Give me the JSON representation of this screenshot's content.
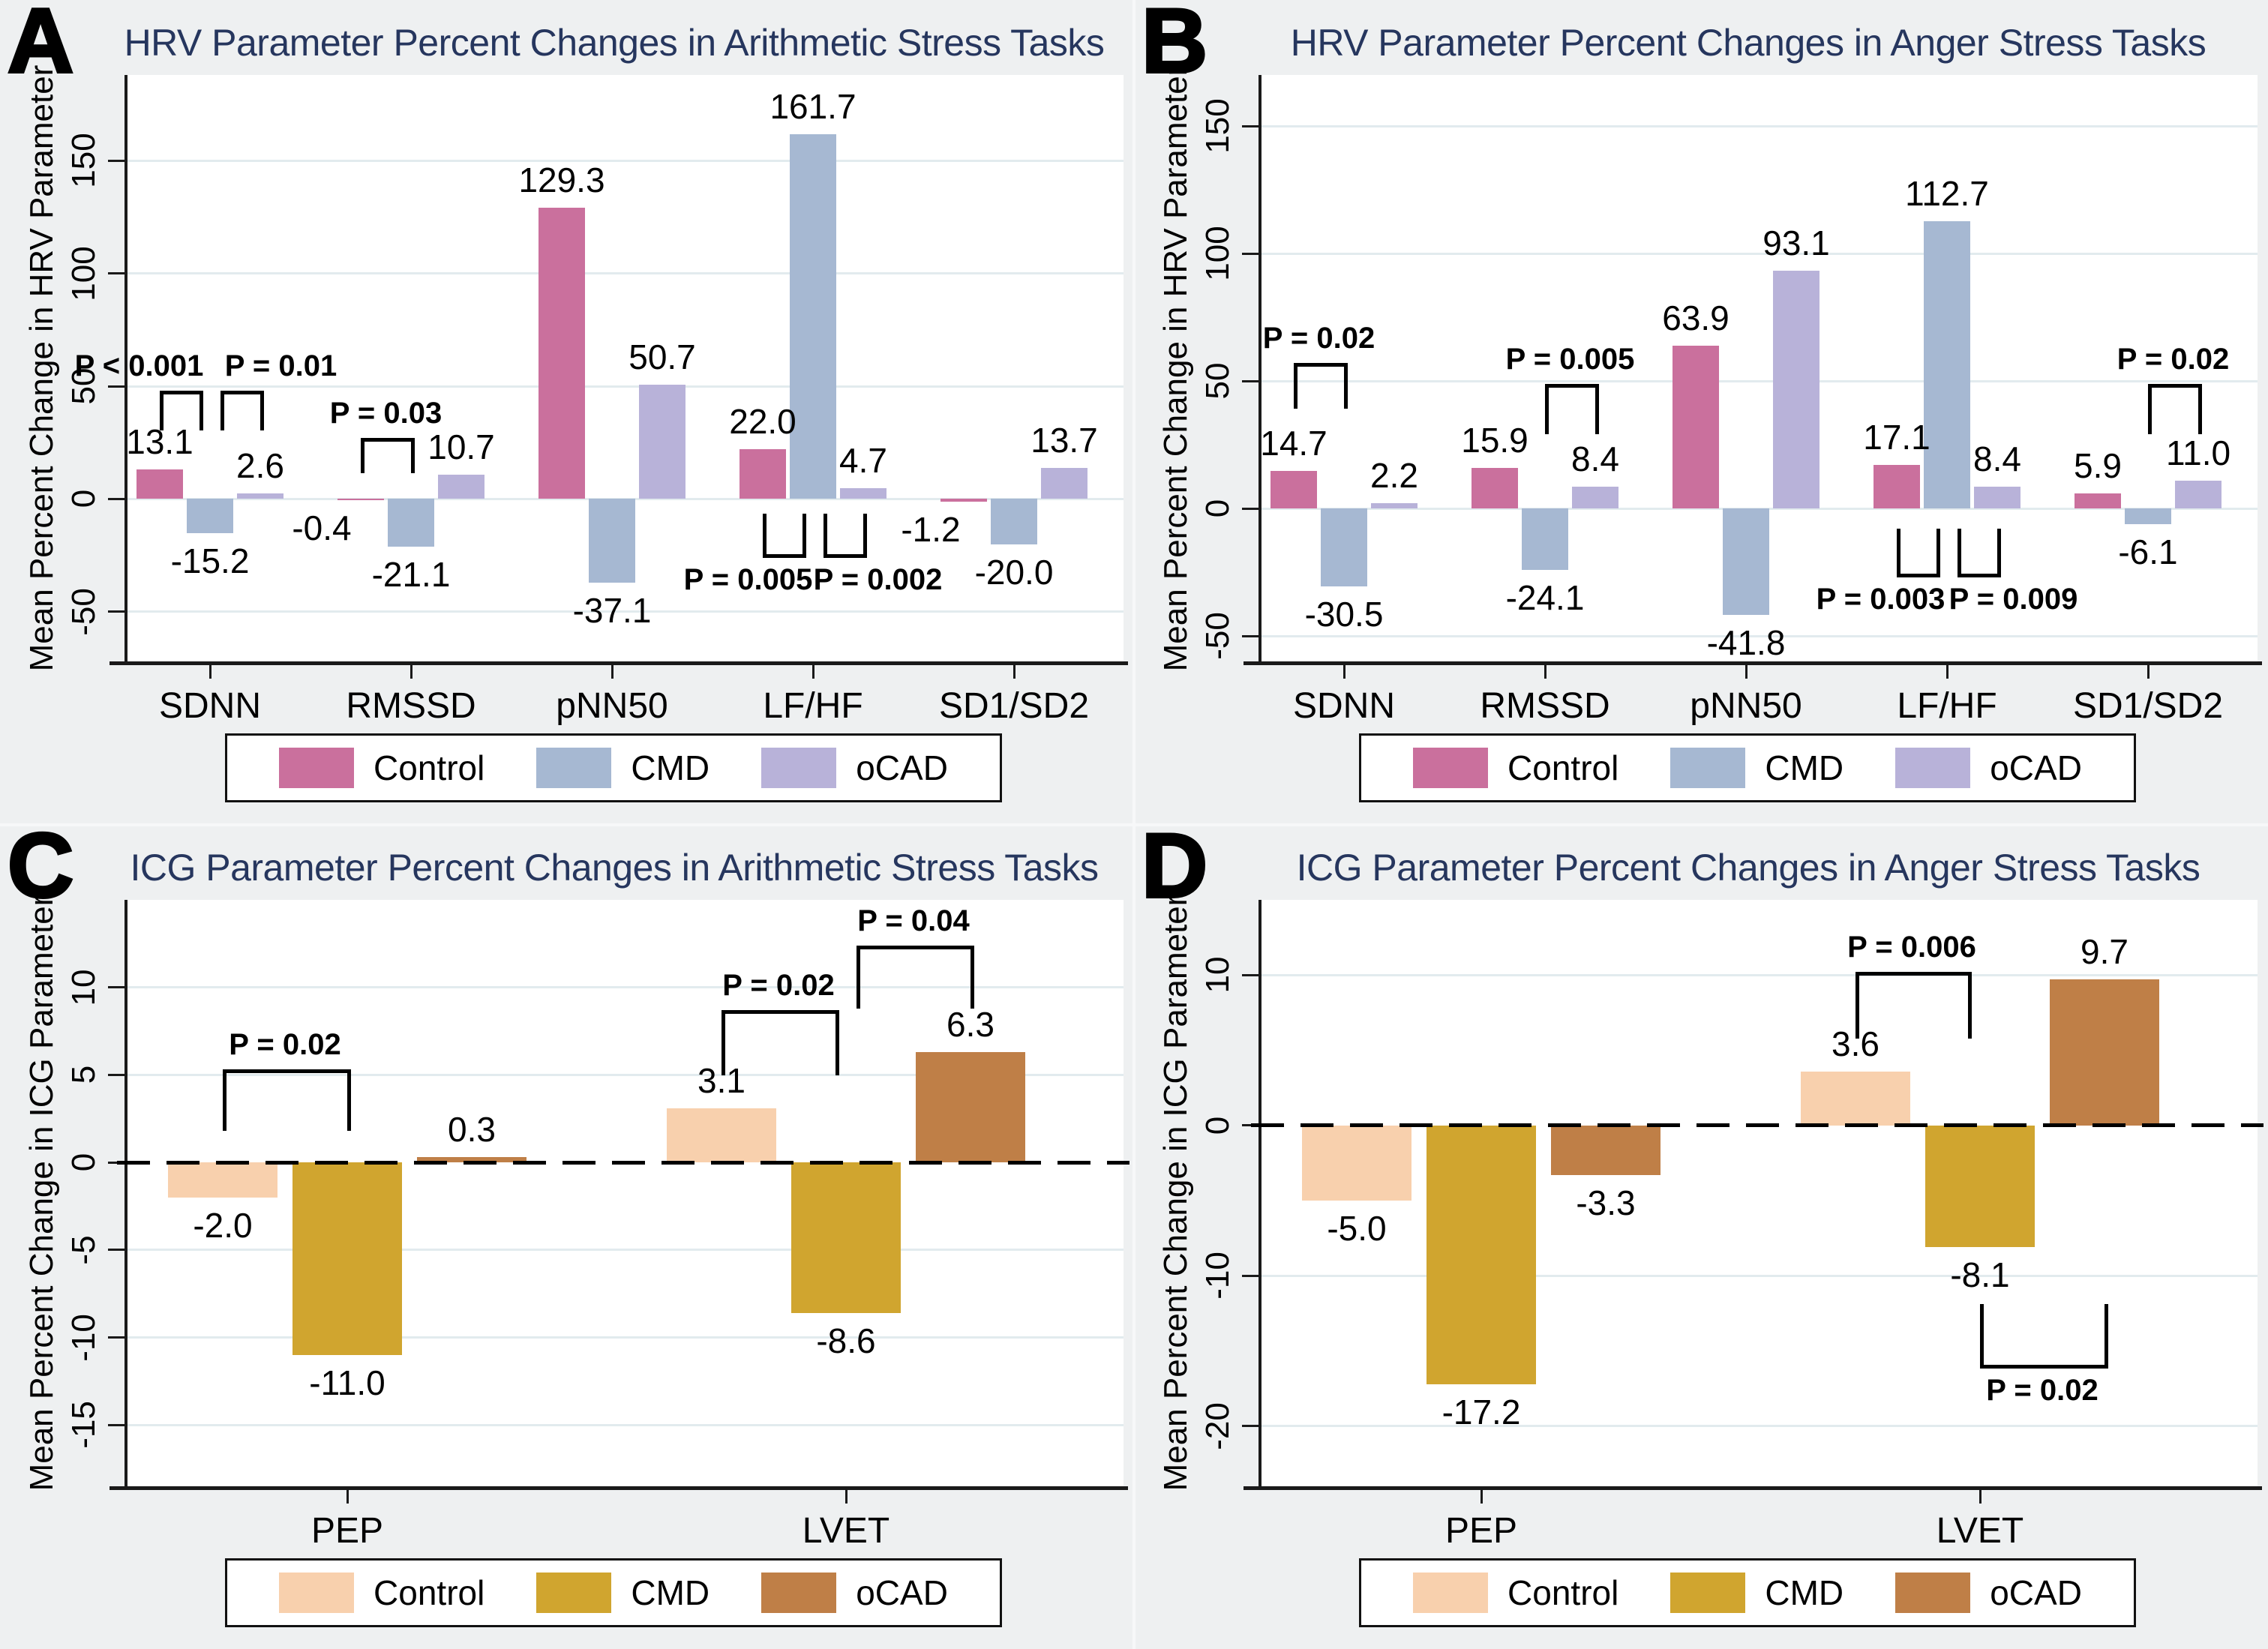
{
  "figure": {
    "background": "#eef0f1",
    "title_color": "#26365e",
    "axis_color": "#1a1a1a",
    "grid_color": "#e2ebee",
    "bracket_color": "#000000"
  },
  "chart_data": [
    {
      "id": "A",
      "type": "bar",
      "title": "HRV Parameter Percent Changes in Arithmetic Stress Tasks",
      "ylabel": "Mean Percent Change in HRV Parameter",
      "categories": [
        "SDNN",
        "RMSSD",
        "pNN50",
        "LF/HF",
        "SD1/SD2"
      ],
      "yticks": [
        150,
        100,
        50,
        0,
        -50
      ],
      "ylim": [
        -72,
        188
      ],
      "zero_line": "grid",
      "legend_position": "bottom",
      "series": [
        {
          "name": "Control",
          "color": "#ca709d",
          "values": [
            13.1,
            -0.4,
            129.3,
            22.0,
            -1.2
          ],
          "labels": [
            "13.1",
            "-0.4",
            "129.3",
            "22.0",
            "-1.2"
          ],
          "label_dx": [
            0,
            -52,
            0,
            0,
            -44
          ]
        },
        {
          "name": "CMD",
          "color": "#a6b8d2",
          "values": [
            -15.2,
            -21.1,
            -37.1,
            161.7,
            -20.0
          ],
          "labels": [
            "-15.2",
            "-21.1",
            "-37.1",
            "161.7",
            "-20.0"
          ]
        },
        {
          "name": "oCAD",
          "color": "#b8b2d9",
          "values": [
            2.6,
            10.7,
            50.7,
            4.7,
            13.7
          ],
          "labels": [
            "2.6",
            "10.7",
            "50.7",
            "4.7",
            "13.7"
          ]
        }
      ],
      "p_brackets": [
        {
          "group": 0,
          "s1": 0,
          "s2": 1,
          "label": "P < 0.001",
          "side": "above",
          "bar_y": 48,
          "leg_y": 32,
          "label_dx": -54,
          "pad2": -14
        },
        {
          "group": 0,
          "s1": 1,
          "s2": 2,
          "label": "P = 0.01",
          "side": "above",
          "bar_y": 48,
          "leg_y": 32,
          "label_dx": 54,
          "pad1": 14
        },
        {
          "group": 1,
          "s1": 0,
          "s2": 1,
          "label": "P = 0.03",
          "side": "above",
          "bar_y": 27,
          "leg_y": 13
        },
        {
          "group": 3,
          "s1": 0,
          "s2": 1,
          "label": "P = 0.005",
          "side": "below",
          "bar_y": -24.5,
          "leg_y": -6.6,
          "label_dx": -46,
          "pad2": -14
        },
        {
          "group": 3,
          "s1": 1,
          "s2": 2,
          "label": "P = 0.002",
          "side": "below",
          "bar_y": -24.5,
          "leg_y": -6.6,
          "label_dx": 46,
          "pad1": 14
        }
      ]
    },
    {
      "id": "B",
      "type": "bar",
      "title": "HRV Parameter Percent Changes in Anger Stress Tasks",
      "ylabel": "Mean Percent Change in HRV Parameter",
      "categories": [
        "SDNN",
        "RMSSD",
        "pNN50",
        "LF/HF",
        "SD1/SD2"
      ],
      "yticks": [
        150,
        100,
        50,
        0,
        -50
      ],
      "ylim": [
        -60,
        170
      ],
      "zero_line": "grid",
      "legend_position": "bottom",
      "series": [
        {
          "name": "Control",
          "color": "#ca709d",
          "values": [
            14.7,
            15.9,
            63.9,
            17.1,
            5.9
          ],
          "labels": [
            "14.7",
            "15.9",
            "63.9",
            "17.1",
            "5.9"
          ]
        },
        {
          "name": "CMD",
          "color": "#a6b8d2",
          "values": [
            -30.5,
            -24.1,
            -41.8,
            112.7,
            -6.1
          ],
          "labels": [
            "-30.5",
            "-24.1",
            "-41.8",
            "112.7",
            "-6.1"
          ]
        },
        {
          "name": "oCAD",
          "color": "#b8b2d9",
          "values": [
            2.2,
            8.4,
            93.1,
            8.4,
            11.0
          ],
          "labels": [
            "2.2",
            "8.4",
            "93.1",
            "8.4",
            "11.0"
          ]
        }
      ],
      "p_brackets": [
        {
          "group": 0,
          "s1": 0,
          "s2": 1,
          "label": "P = 0.02",
          "side": "above",
          "bar_y": 57,
          "leg_y": 40.6
        },
        {
          "group": 1,
          "s1": 1,
          "s2": 2,
          "label": "P = 0.005",
          "side": "above",
          "bar_y": 48.8,
          "leg_y": 30.7
        },
        {
          "group": 3,
          "s1": 0,
          "s2": 1,
          "label": "P = 0.003",
          "side": "below",
          "bar_y": -25.5,
          "leg_y": -8,
          "label_dx": -48,
          "pad2": -14
        },
        {
          "group": 3,
          "s1": 1,
          "s2": 2,
          "label": "P = 0.009",
          "side": "below",
          "bar_y": -25.5,
          "leg_y": -8,
          "label_dx": 48,
          "pad1": 14
        },
        {
          "group": 4,
          "s1": 1,
          "s2": 2,
          "label": "P = 0.02",
          "side": "above",
          "bar_y": 48.8,
          "leg_y": 30.7
        }
      ]
    },
    {
      "id": "C",
      "type": "bar",
      "title": "ICG Parameter Percent Changes in Arithmetic Stress Tasks",
      "ylabel": "Mean Percent Change in ICG Parameter",
      "categories": [
        "PEP",
        "LVET"
      ],
      "yticks": [
        10,
        5,
        0,
        -5,
        -10,
        -15
      ],
      "ylim": [
        -18.5,
        15
      ],
      "zero_line": "dashed",
      "legend_position": "bottom",
      "series": [
        {
          "name": "Control",
          "color": "#f8d0ad",
          "values": [
            -2.0,
            3.1
          ],
          "labels": [
            "-2.0",
            "3.1"
          ]
        },
        {
          "name": "CMD",
          "color": "#d0a52f",
          "values": [
            -11.0,
            -8.6
          ],
          "labels": [
            "-11.0",
            "-8.6"
          ]
        },
        {
          "name": "oCAD",
          "color": "#bf7f47",
          "values": [
            0.3,
            6.3
          ],
          "labels": [
            "0.3",
            "6.3"
          ]
        }
      ],
      "p_brackets": [
        {
          "group": 0,
          "s1": 0,
          "s2": 1,
          "label": "P = 0.02",
          "side": "above",
          "bar_y": 5.3,
          "leg_y": 2.0
        },
        {
          "group": 1,
          "s1": 0,
          "s2": 1,
          "label": "P = 0.02",
          "side": "above",
          "bar_y": 8.7,
          "leg_y": 5.2,
          "pad2": -14
        },
        {
          "group": 1,
          "s1": 1,
          "s2": 2,
          "label": "P = 0.04",
          "side": "above",
          "bar_y": 12.4,
          "leg_y": 9.0,
          "pad1": 14
        }
      ]
    },
    {
      "id": "D",
      "type": "bar",
      "title": "ICG Parameter Percent Changes in Anger Stress Tasks",
      "ylabel": "Mean Percent Change in ICG Parameter",
      "categories": [
        "PEP",
        "LVET"
      ],
      "yticks": [
        10,
        0,
        -10,
        -20
      ],
      "ylim": [
        -24,
        15
      ],
      "zero_line": "dashed",
      "legend_position": "bottom",
      "series": [
        {
          "name": "Control",
          "color": "#f8d0ad",
          "values": [
            -5.0,
            3.6
          ],
          "labels": [
            "-5.0",
            "3.6"
          ]
        },
        {
          "name": "CMD",
          "color": "#d0a52f",
          "values": [
            -17.2,
            -8.1
          ],
          "labels": [
            "-17.2",
            "-8.1"
          ]
        },
        {
          "name": "oCAD",
          "color": "#bf7f47",
          "values": [
            -3.3,
            9.7
          ],
          "labels": [
            "-3.3",
            "9.7"
          ]
        }
      ],
      "p_brackets": [
        {
          "group": 1,
          "s1": 0,
          "s2": 1,
          "label": "P = 0.006",
          "side": "above",
          "bar_y": 10.2,
          "leg_y": 6.0,
          "pad2": -16
        },
        {
          "group": 1,
          "s1": 1,
          "s2": 2,
          "label": "P = 0.02",
          "side": "below",
          "bar_y": -15.9,
          "leg_y": -11.9
        }
      ]
    }
  ]
}
